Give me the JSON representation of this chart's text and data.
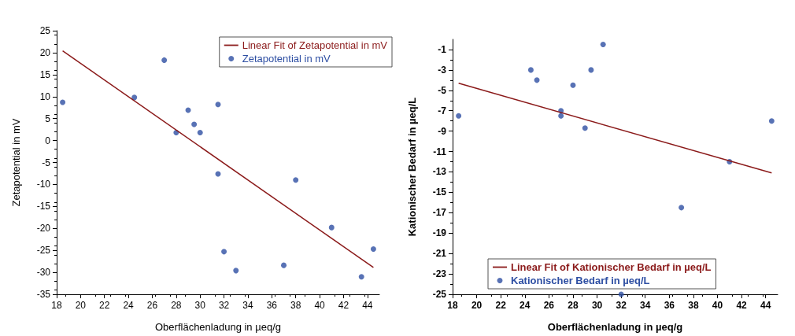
{
  "chart_data": [
    {
      "type": "scatter",
      "xlabel": "Oberflächenladung in µeq/g",
      "ylabel": "Zetapotential in mV",
      "xlim": [
        18,
        45
      ],
      "xticks": [
        18,
        20,
        22,
        24,
        26,
        28,
        30,
        32,
        34,
        36,
        38,
        40,
        42,
        44
      ],
      "ylim": [
        -35,
        25
      ],
      "yticks": [
        -35,
        -30,
        -25,
        -20,
        -15,
        -10,
        -5,
        0,
        5,
        10,
        15,
        20,
        25
      ],
      "grid": false,
      "legend": "top right",
      "marker": "circle",
      "series": [
        {
          "name": "Linear Fit of Zetapotential in mV",
          "type": "line",
          "line_style": "solid",
          "marker": "none",
          "color": "#8b1a1a",
          "x": [
            18.5,
            44.5
          ],
          "values": [
            20.4,
            -28.9
          ]
        },
        {
          "name": "Zetapotential in mV",
          "color": "#2e4fa3",
          "x": [
            18.5,
            24.5,
            27,
            28,
            29,
            29.5,
            30,
            31.5,
            31.5,
            32,
            33,
            37,
            38,
            41,
            43.5,
            44.5
          ],
          "values": [
            8.7,
            9.8,
            18.3,
            1.8,
            6.9,
            3.7,
            1.8,
            8.2,
            -7.6,
            -25.3,
            -29.6,
            -28.4,
            -9,
            -19.8,
            -31,
            -24.7
          ]
        }
      ]
    },
    {
      "type": "scatter",
      "xlabel": "Oberflächenladung in µeq/g",
      "ylabel": "Kationischer Bedarf in µeq/L",
      "xlim": [
        18,
        45
      ],
      "xticks": [
        18,
        20,
        22,
        24,
        26,
        28,
        30,
        32,
        34,
        36,
        38,
        40,
        42,
        44
      ],
      "ylim": [
        -25,
        0
      ],
      "yticks": [
        -25,
        -23,
        -21,
        -19,
        -17,
        -15,
        -13,
        -11,
        -9,
        -7,
        -5,
        -3,
        -1
      ],
      "grid": false,
      "legend": "bottom",
      "marker": "circle",
      "series": [
        {
          "name": "Linear Fit of Kationischer Bedarf in µeq/L",
          "type": "line",
          "line_style": "solid",
          "marker": "none",
          "color": "#8b1a1a",
          "x": [
            18.5,
            44.5
          ],
          "values": [
            -4.3,
            -13.1
          ]
        },
        {
          "name": "Kationischer Bedarf in µeq/L",
          "color": "#2e4fa3",
          "x": [
            18.5,
            24.5,
            25,
            27,
            27,
            28,
            29,
            29.5,
            30.5,
            32,
            37,
            41,
            44.5
          ],
          "values": [
            -7.5,
            -3,
            -4,
            -7,
            -7.5,
            -4.5,
            -8.7,
            -3,
            -0.5,
            -25,
            -16.5,
            -12,
            -8
          ]
        }
      ]
    }
  ]
}
